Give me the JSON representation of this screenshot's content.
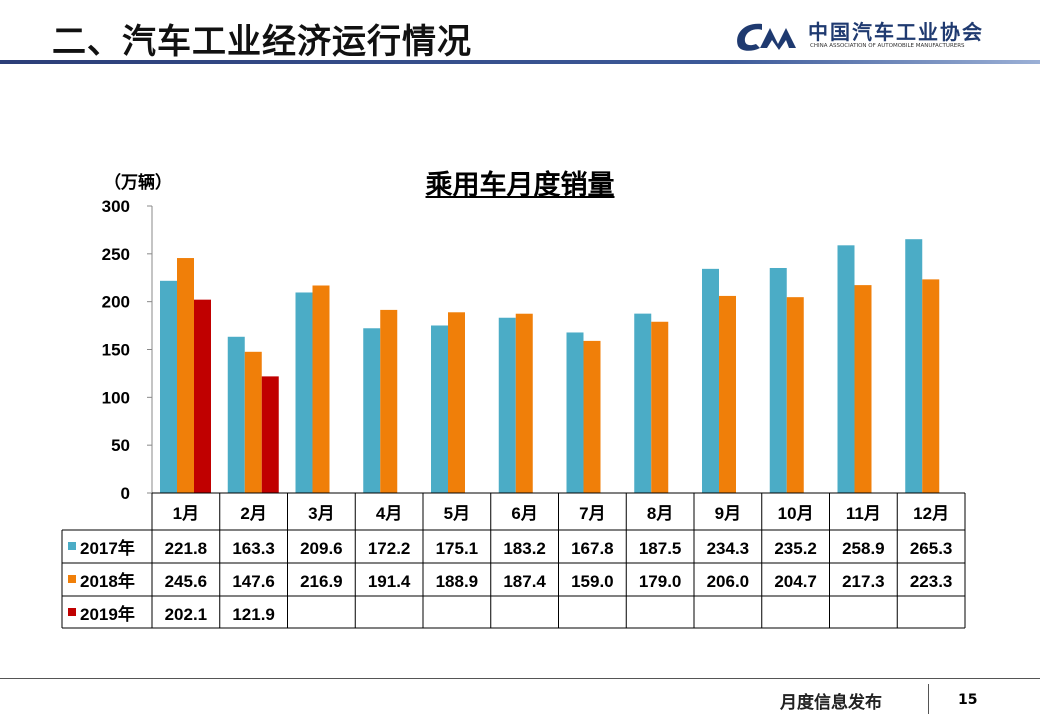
{
  "header": {
    "title": "二、汽车工业经济运行情况",
    "logo_mark": "CM",
    "logo_cn": "中国汽车工业协会",
    "logo_en": "CHINA ASSOCIATION OF AUTOMOBILE MANUFACTURERS"
  },
  "footer": {
    "text": "月度信息发布",
    "page": "15"
  },
  "chart_data": {
    "type": "bar",
    "title": "乘用车月度销量",
    "ylabel": "（万辆）",
    "ylim": [
      0,
      300
    ],
    "yticks": [
      0,
      50,
      100,
      150,
      200,
      250,
      300
    ],
    "categories": [
      "1月",
      "2月",
      "3月",
      "4月",
      "5月",
      "6月",
      "7月",
      "8月",
      "9月",
      "10月",
      "11月",
      "12月"
    ],
    "series": [
      {
        "name": "2017年",
        "color": "#4bacc6",
        "values": [
          221.8,
          163.3,
          209.6,
          172.2,
          175.1,
          183.2,
          167.8,
          187.5,
          234.3,
          235.2,
          258.9,
          265.3
        ]
      },
      {
        "name": "2018年",
        "color": "#f07f09",
        "values": [
          245.6,
          147.6,
          216.9,
          191.4,
          188.9,
          187.4,
          159.0,
          179.0,
          206.0,
          204.7,
          217.3,
          223.3
        ]
      },
      {
        "name": "2019年",
        "color": "#c00000",
        "values": [
          202.1,
          121.9,
          null,
          null,
          null,
          null,
          null,
          null,
          null,
          null,
          null,
          null
        ]
      }
    ],
    "legend": "data-table",
    "grid": false
  }
}
